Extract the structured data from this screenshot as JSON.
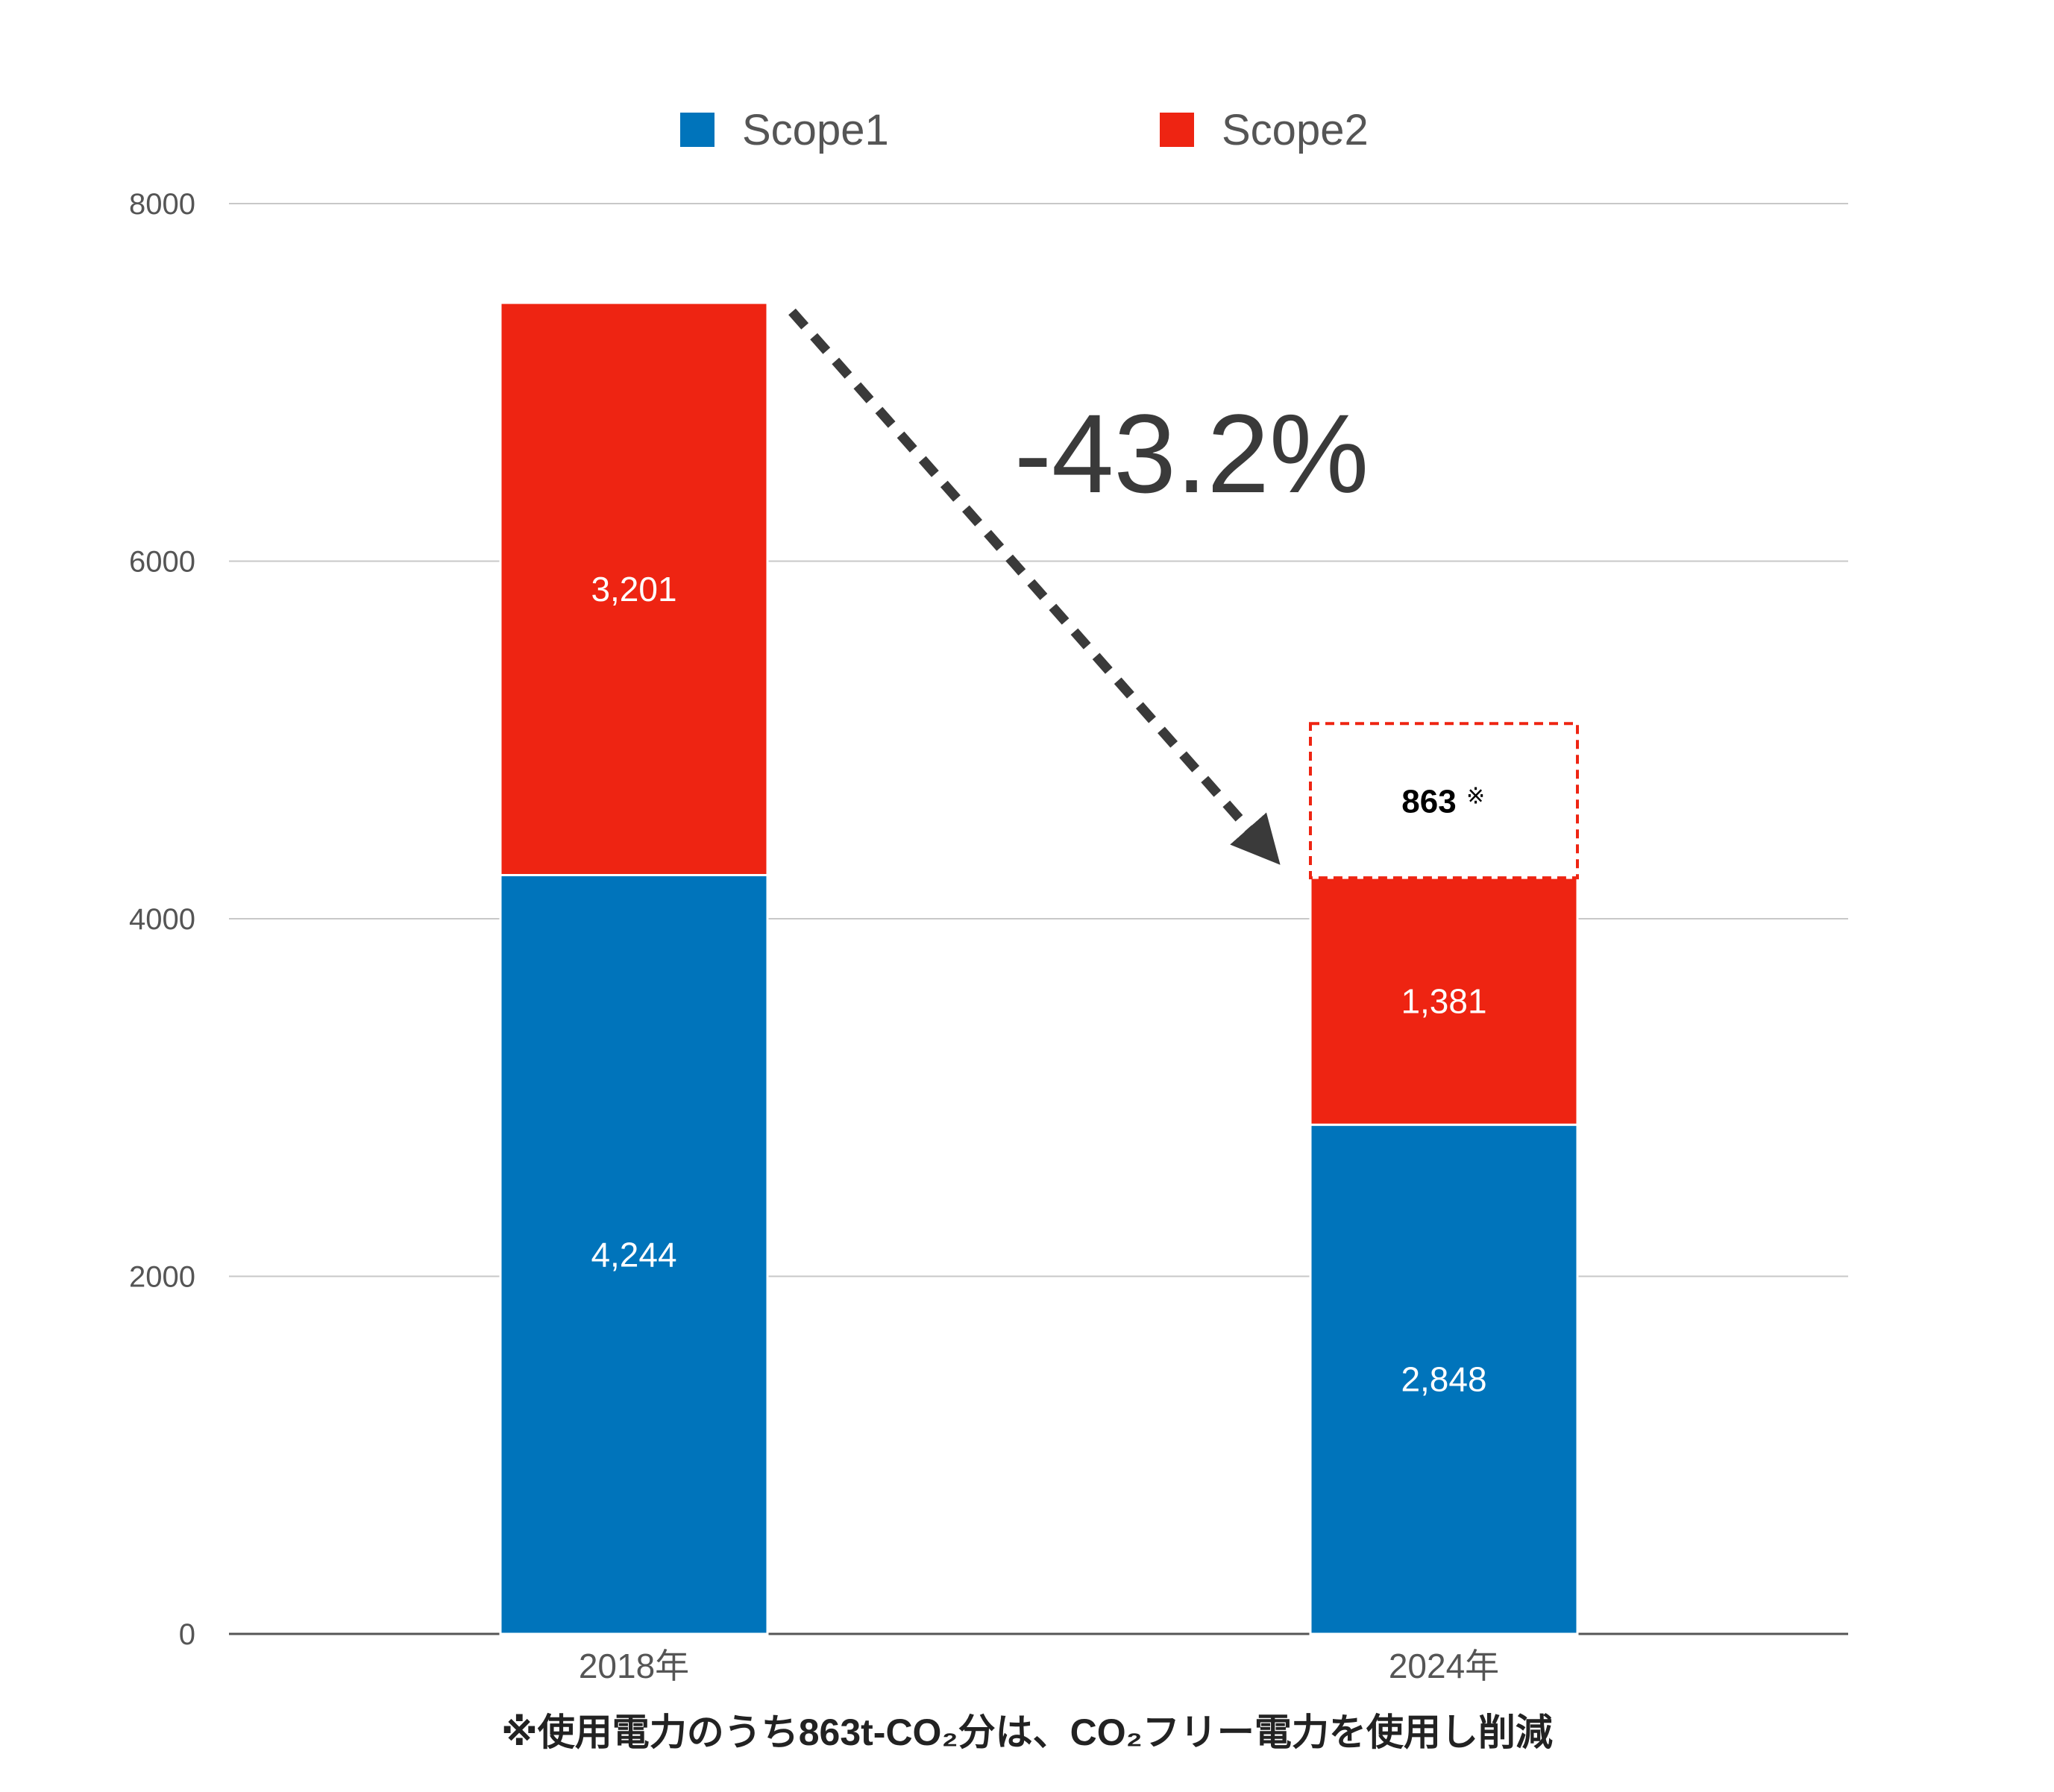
{
  "chart_data": {
    "type": "bar",
    "stacked": true,
    "categories": [
      "2018年",
      "2024年"
    ],
    "series": [
      {
        "name": "Scope1",
        "color": "#0074BB",
        "values": [
          4244,
          2848
        ],
        "labels": [
          "4,244",
          "2,848"
        ]
      },
      {
        "name": "Scope2",
        "color": "#EE2412",
        "values": [
          3201,
          1381
        ],
        "labels": [
          "3,201",
          "1,381"
        ]
      }
    ],
    "ylim": [
      0,
      8000
    ],
    "yticks": [
      "0",
      "2000",
      "4000",
      "6000",
      "8000"
    ],
    "grid": true,
    "legend": "top-center",
    "annotations": {
      "reduction_label": "-43.2%",
      "co2_free": {
        "category": "2024年",
        "value": 863,
        "label": "863",
        "mark": "※",
        "style": "dashed-outline",
        "color": "#EE2412"
      }
    },
    "footnote": "※使用電力のうち863t-CO₂分は、CO₂フリー電力を使用し削減"
  }
}
